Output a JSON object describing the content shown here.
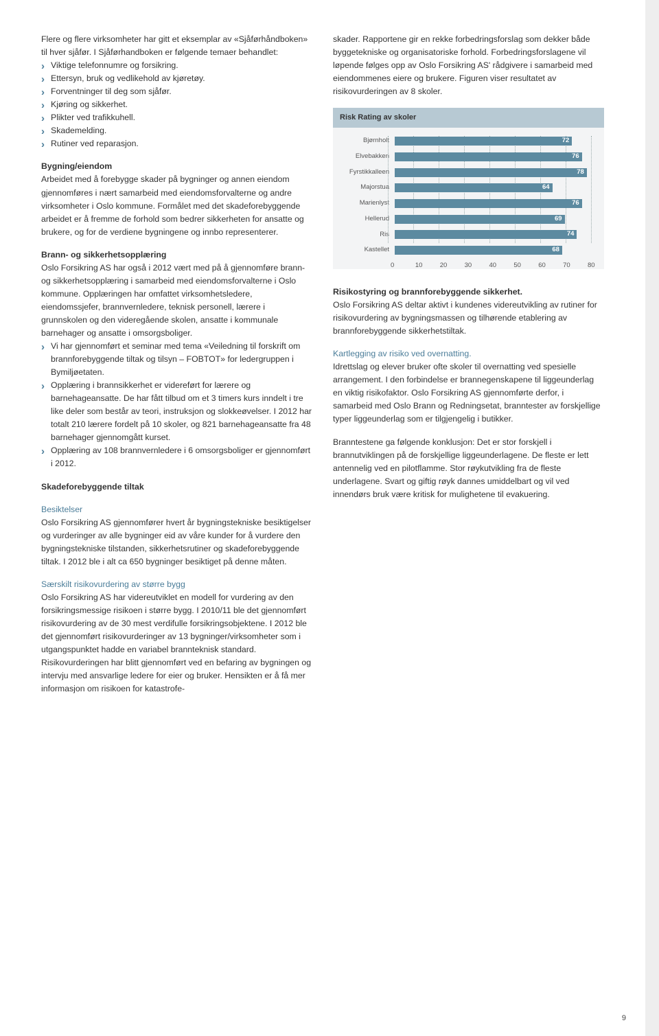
{
  "leftCol": {
    "p1": "Flere og flere virksomheter har gitt et eksemplar av «Sjåførhåndboken» til hver sjåfør. I Sjåførhandboken er følgende temaer behandlet:",
    "bullets1": [
      "Viktige telefonnumre og forsikring.",
      "Ettersyn, bruk og vedlikehold av kjøretøy.",
      "Forventninger til deg som sjåfør.",
      "Kjøring og sikkerhet.",
      "Plikter ved trafikkuhell.",
      "Skademelding.",
      "Rutiner ved reparasjon."
    ],
    "h_bygning": "Bygning/eiendom",
    "p_bygning": "Arbeidet med å forebygge skader på bygninger og annen eiendom gjennomføres i nært samarbeid med eiendomsforvalterne og andre virksomheter i Oslo kommune. Formålet med det skadeforebyggende arbeidet er å fremme de forhold som bedrer sikkerheten for ansatte og brukere, og for de verdiene bygningene og innbo representerer.",
    "h_brann": "Brann- og sikkerhetsopplæring",
    "p_brann": "Oslo Forsikring AS har også i 2012 vært med på å gjennomføre brann- og sikkerhetsopplæring i samarbeid med eiendomsforvalterne i Oslo kommune. Opplæringen har omfattet virksomhetsledere, eiendomssjefer, brannvernledere, teknisk personell, lærere i grunnskolen og den videregående skolen, ansatte i kommunale barnehager og ansatte i omsorgsboliger.",
    "bullets2": [
      "Vi har gjennomført et seminar med tema «Veiledning til forskrift om brannforebyggende tiltak og tilsyn – FOBTOT» for ledergruppen i Bymiljøetaten.",
      "Opplæring i brannsikkerhet er videreført for lærere og barnehageansatte. De har fått tilbud om et 3 timers kurs inndelt i tre like deler som består av teori, instruksjon og slokkeøvelser. I 2012 har totalt 210 lærere fordelt på 10 skoler, og 821 barnehageansatte fra 48 barnehager gjennomgått kurset.",
      "Opplæring av 108 brannvernledere i 6 omsorgsboliger er gjennomført i 2012."
    ],
    "h_skade": "Skadeforebyggende tiltak",
    "h_besik": "Besiktelser",
    "p_besik": "Oslo Forsikring AS gjennomfører hvert år bygningstekniske besiktigelser og vurderinger av alle bygninger eid av våre kunder for å vurdere den bygningstekniske tilstanden, sikkerhetsrutiner og skadeforebyggende tiltak. I 2012 ble i alt ca 650 bygninger besiktiget på denne måten.",
    "h_sar": "Særskilt risikovurdering av større bygg",
    "p_sar": "Oslo Forsikring AS har videreutviklet en modell for vurdering av den forsikringsmessige risikoen i større bygg. I 2010/11 ble det gjennomført risikovurdering av de 30 mest verdifulle forsikringsobjektene. I 2012 ble det gjennomført risikovurderinger av 13 bygninger/virksomheter som i utgangspunktet hadde en variabel brannteknisk standard. Risikovurderingen har blitt gjennomført ved en befaring av bygningen og intervju med ansvarlige ledere for eier og bruker. Hensikten er å få mer informasjon om risikoen for katastrofe-"
  },
  "rightCol": {
    "p_sar_cont": "skader. Rapportene gir en rekke forbedringsforslag som dekker både byggetekniske og organisatoriske forhold. Forbedringsforslagene vil løpende følges opp av Oslo Forsikring AS' rådgivere i samarbeid med eiendommenes eiere og brukere. Figuren viser resultatet av risikovurderingen av 8 skoler.",
    "h_risk": "Risikostyring og brannforebyggende sikkerhet.",
    "p_risk": "Oslo Forsikring AS deltar aktivt i kundenes videreutvikling av rutiner for risikovurdering av bygningsmassen og tilhørende etablering av brannforebyggende sikkerhetstiltak.",
    "h_kart": "Kartlegging av risiko ved overnatting.",
    "p_kart": "Idrettslag og elever bruker ofte skoler til overnatting ved spesielle arrangement.  I den forbindelse er brannegenskapene til liggeunderlag en viktig risikofaktor. Oslo Forsikring AS gjennomførte derfor, i samarbeid med Oslo Brann og Redningsetat, branntester av forskjellige typer liggeunderlag som er tilgjengelig i butikker.",
    "p_konk": "Branntestene ga følgende konklusjon: Det er stor forskjell i brannutviklingen på de forskjellige liggeunderlagene. De fleste er lett antennelig ved en pilotflamme. Stor røykutvikling fra de fleste underlagene. Svart og giftig røyk dannes umiddelbart og vil ved innendørs bruk være kritisk for mulighetene til evakuering."
  },
  "chart": {
    "title": "Risk Rating av skoler",
    "type": "bar",
    "xmin": 0,
    "xmax": 80,
    "xtick_step": 10,
    "xticks": [
      "0",
      "10",
      "20",
      "30",
      "40",
      "50",
      "60",
      "70",
      "80"
    ],
    "bar_color": "#5c8aa0",
    "title_bg": "#b7c9d3",
    "background_color": "#f3f4f5",
    "grid_color": "#9aa",
    "label_color": "#555",
    "value_color": "#ffffff",
    "bars": [
      {
        "label": "Bjørnholt",
        "value": 72
      },
      {
        "label": "Elvebakken",
        "value": 76
      },
      {
        "label": "Fyrstikkalleen",
        "value": 78
      },
      {
        "label": "Majorstua",
        "value": 64
      },
      {
        "label": "Marienlyst",
        "value": 76
      },
      {
        "label": "Hellerud",
        "value": 69
      },
      {
        "label": "Ris",
        "value": 74
      },
      {
        "label": "Kastellet",
        "value": 68
      }
    ]
  },
  "page_number": "9"
}
